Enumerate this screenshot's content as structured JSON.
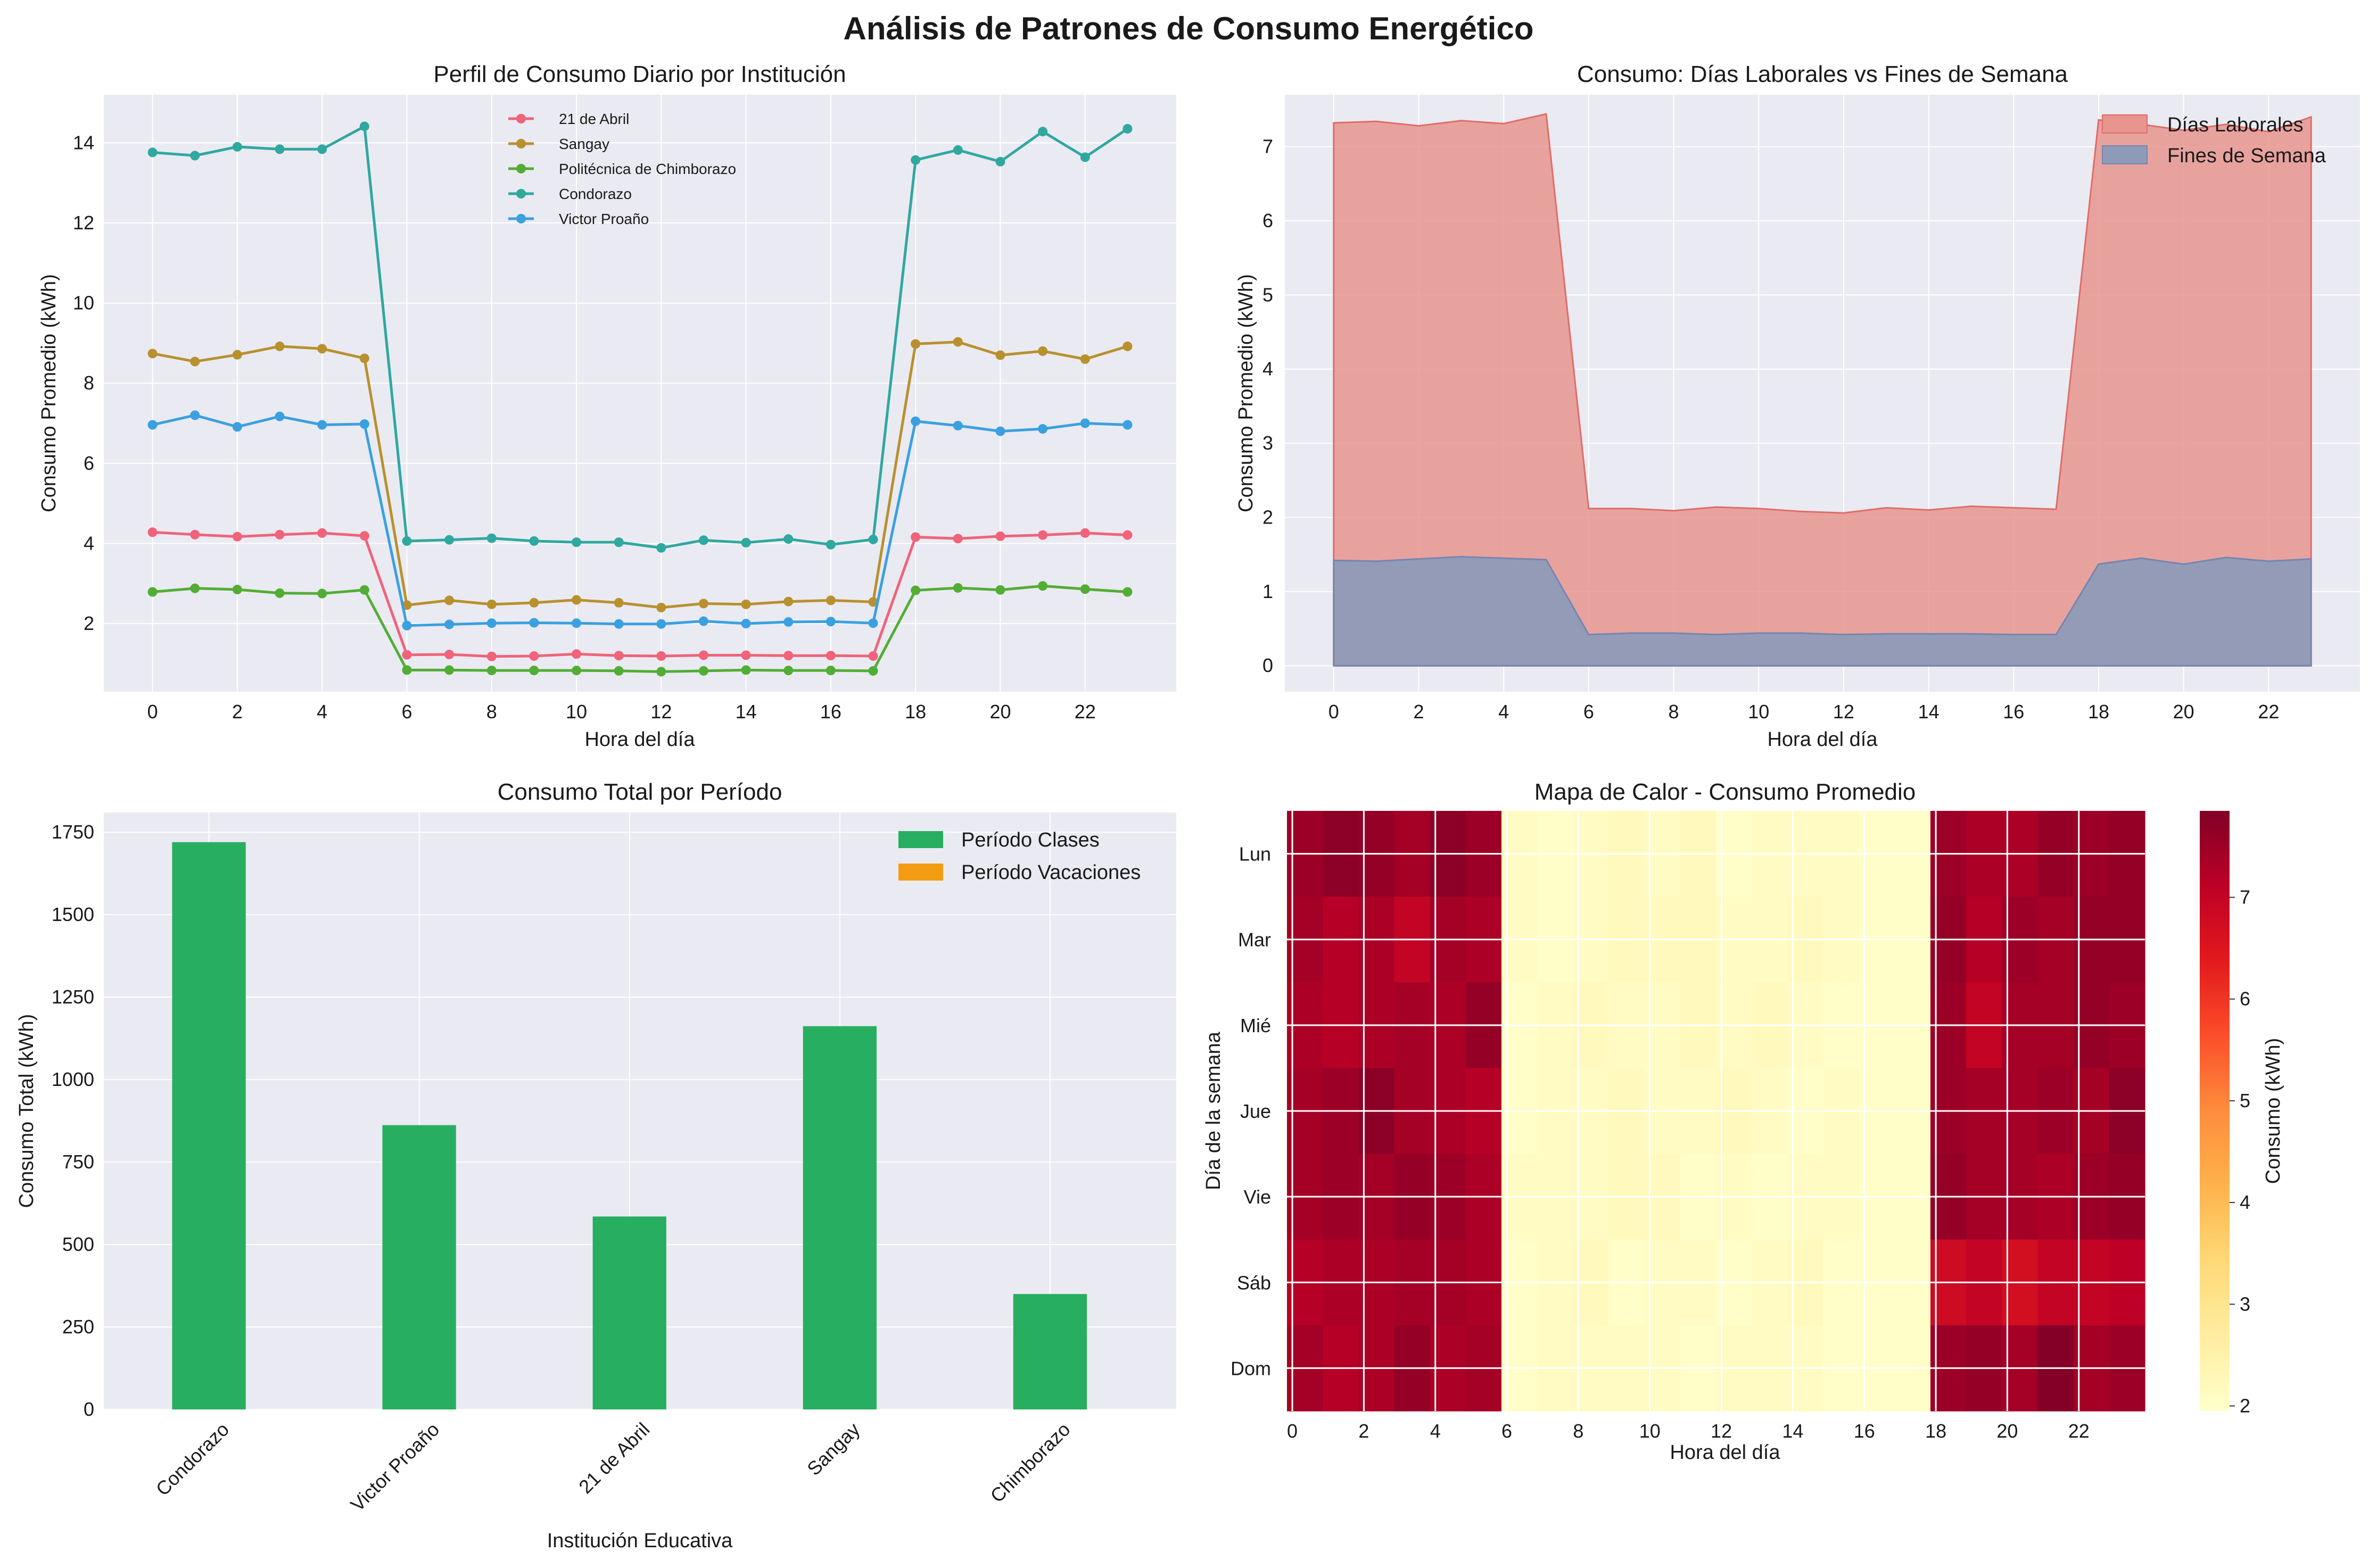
{
  "figure_title": "Análisis de Patrones de Consumo Energético",
  "colors": {
    "panel_bg": "#eaeaf2",
    "grid": "#ffffff",
    "clases": "#27ae60",
    "vacaciones": "#f39c12",
    "laborales": "#e8958f",
    "laborales_edge": "#e06c69",
    "fines": "#8e9bb8",
    "fines_edge": "#7586b0"
  },
  "chart_data": [
    {
      "type": "line",
      "title": "Perfil de Consumo Diario por Institución",
      "xlabel": "Hora del día",
      "ylabel": "Consumo Promedio (kWh)",
      "x": [
        0,
        1,
        2,
        3,
        4,
        5,
        6,
        7,
        8,
        9,
        10,
        11,
        12,
        13,
        14,
        15,
        16,
        17,
        18,
        19,
        20,
        21,
        22,
        23
      ],
      "xticks": [
        "0",
        "2",
        "4",
        "6",
        "8",
        "10",
        "12",
        "14",
        "16",
        "18",
        "20",
        "22"
      ],
      "yticks": [
        "2",
        "4",
        "6",
        "8",
        "10",
        "12",
        "14"
      ],
      "ylim": [
        0.3,
        15.2
      ],
      "legend": "top-center",
      "series": [
        {
          "name": "21 de Abril",
          "color": "#f0637a",
          "values": [
            4.28,
            4.22,
            4.17,
            4.22,
            4.26,
            4.19,
            1.22,
            1.23,
            1.18,
            1.19,
            1.24,
            1.2,
            1.19,
            1.21,
            1.21,
            1.2,
            1.2,
            1.19,
            4.16,
            4.12,
            4.18,
            4.21,
            4.26,
            4.21
          ]
        },
        {
          "name": "Sangay",
          "color": "#b8902e",
          "values": [
            8.74,
            8.54,
            8.71,
            8.92,
            8.86,
            8.62,
            2.46,
            2.58,
            2.48,
            2.52,
            2.59,
            2.52,
            2.4,
            2.5,
            2.48,
            2.55,
            2.58,
            2.54,
            8.98,
            9.03,
            8.7,
            8.8,
            8.6,
            8.92
          ]
        },
        {
          "name": "Politécnica de Chimborazo",
          "color": "#52ad35",
          "values": [
            2.79,
            2.88,
            2.85,
            2.76,
            2.75,
            2.84,
            0.84,
            0.84,
            0.83,
            0.83,
            0.83,
            0.82,
            0.8,
            0.82,
            0.84,
            0.83,
            0.83,
            0.82,
            2.83,
            2.89,
            2.84,
            2.94,
            2.86,
            2.79
          ]
        },
        {
          "name": "Condorazo",
          "color": "#2fa8a0",
          "values": [
            13.76,
            13.68,
            13.9,
            13.84,
            13.84,
            14.41,
            4.06,
            4.09,
            4.13,
            4.06,
            4.03,
            4.03,
            3.89,
            4.08,
            4.02,
            4.11,
            3.97,
            4.1,
            13.57,
            13.82,
            13.53,
            14.28,
            13.64,
            14.35
          ]
        },
        {
          "name": "Victor Proaño",
          "color": "#3aa0e0",
          "values": [
            6.96,
            7.2,
            6.91,
            7.17,
            6.96,
            6.98,
            1.95,
            1.98,
            2.01,
            2.02,
            2.01,
            1.99,
            1.99,
            2.06,
            2.0,
            2.04,
            2.05,
            2.01,
            7.05,
            6.94,
            6.8,
            6.86,
            7.0,
            6.96
          ]
        }
      ]
    },
    {
      "type": "area",
      "title": "Consumo: Días Laborales vs Fines de Semana",
      "xlabel": "Hora del día",
      "ylabel": "Consumo Promedio (kWh)",
      "x": [
        0,
        1,
        2,
        3,
        4,
        5,
        6,
        7,
        8,
        9,
        10,
        11,
        12,
        13,
        14,
        15,
        16,
        17,
        18,
        19,
        20,
        21,
        22,
        23
      ],
      "xticks": [
        "0",
        "2",
        "4",
        "6",
        "8",
        "10",
        "12",
        "14",
        "16",
        "18",
        "20",
        "22"
      ],
      "yticks": [
        "0",
        "1",
        "2",
        "3",
        "4",
        "5",
        "6",
        "7"
      ],
      "ylim": [
        -0.35,
        7.7
      ],
      "legend": "top-right",
      "series": [
        {
          "name": "Días Laborales",
          "values": [
            7.32,
            7.34,
            7.28,
            7.35,
            7.31,
            7.44,
            2.12,
            2.12,
            2.09,
            2.14,
            2.12,
            2.08,
            2.06,
            2.13,
            2.1,
            2.15,
            2.13,
            2.11,
            7.36,
            7.3,
            7.22,
            7.3,
            7.2,
            7.4
          ]
        },
        {
          "name": "Fines de Semana",
          "values": [
            1.42,
            1.41,
            1.44,
            1.47,
            1.45,
            1.43,
            0.42,
            0.44,
            0.44,
            0.42,
            0.44,
            0.44,
            0.42,
            0.43,
            0.43,
            0.43,
            0.42,
            0.42,
            1.37,
            1.45,
            1.37,
            1.46,
            1.41,
            1.44
          ]
        }
      ]
    },
    {
      "type": "bar",
      "title": "Consumo Total por Período",
      "xlabel": "Institución Educativa",
      "ylabel": "Consumo Total (kWh)",
      "categories": [
        "Condorazo",
        "Victor Proaño",
        "21 de Abril",
        "Sangay",
        "Chimborazo"
      ],
      "yticks": [
        "0",
        "250",
        "500",
        "750",
        "1000",
        "1250",
        "1500",
        "1750"
      ],
      "ylim": [
        0,
        1810
      ],
      "legend": "top-right",
      "series": [
        {
          "name": "Período Clases",
          "values": [
            1720,
            862,
            585,
            1162,
            350
          ]
        },
        {
          "name": "Período Vacaciones",
          "values": [
            0,
            0,
            0,
            0,
            0
          ]
        }
      ]
    },
    {
      "type": "heatmap",
      "title": "Mapa de Calor - Consumo Promedio",
      "xlabel": "Hora del día",
      "ylabel": "Día de la semana",
      "xticks": [
        "0",
        "2",
        "4",
        "6",
        "8",
        "10",
        "12",
        "14",
        "16",
        "18",
        "20",
        "22"
      ],
      "rows": [
        "Lun",
        "Mar",
        "Mié",
        "Jue",
        "Vie",
        "Sáb",
        "Dom"
      ],
      "colorbar_label": "Consumo (kWh)",
      "colorbar_ticks": [
        "2",
        "3",
        "4",
        "5",
        "6",
        "7"
      ],
      "vmin": 1.95,
      "vmax": 7.85,
      "values": [
        [
          7.5,
          7.7,
          7.6,
          7.4,
          7.7,
          7.5,
          2.1,
          2.0,
          2.1,
          2.2,
          2.1,
          2.2,
          2.0,
          2.1,
          2.1,
          2.1,
          2.0,
          2.0,
          7.5,
          7.3,
          7.3,
          7.6,
          7.5,
          7.6
        ],
        [
          7.4,
          7.2,
          7.3,
          7.0,
          7.4,
          7.3,
          2.1,
          2.0,
          2.1,
          2.2,
          2.2,
          2.2,
          2.1,
          2.1,
          2.2,
          2.1,
          2.0,
          2.0,
          7.6,
          7.2,
          7.5,
          7.4,
          7.6,
          7.6
        ],
        [
          7.3,
          7.2,
          7.3,
          7.4,
          7.3,
          7.6,
          2.0,
          2.1,
          2.2,
          2.1,
          2.1,
          2.2,
          2.1,
          2.2,
          2.1,
          2.0,
          2.0,
          2.0,
          7.5,
          7.0,
          7.4,
          7.4,
          7.6,
          7.5
        ],
        [
          7.4,
          7.5,
          7.7,
          7.4,
          7.3,
          7.2,
          2.0,
          2.1,
          2.1,
          2.2,
          2.1,
          2.1,
          2.2,
          2.1,
          2.0,
          2.1,
          2.0,
          2.0,
          7.5,
          7.4,
          7.4,
          7.5,
          7.4,
          7.7
        ],
        [
          7.4,
          7.5,
          7.4,
          7.6,
          7.5,
          7.3,
          2.1,
          2.1,
          2.1,
          2.2,
          2.2,
          2.0,
          2.1,
          2.0,
          2.1,
          2.1,
          2.0,
          2.0,
          7.6,
          7.4,
          7.4,
          7.3,
          7.5,
          7.6
        ],
        [
          7.2,
          7.3,
          7.3,
          7.4,
          7.4,
          7.3,
          2.0,
          2.1,
          2.2,
          2.0,
          2.1,
          2.1,
          2.0,
          2.1,
          2.2,
          2.0,
          2.0,
          2.0,
          6.8,
          7.0,
          6.7,
          7.0,
          7.0,
          7.1
        ],
        [
          7.4,
          7.2,
          7.3,
          7.6,
          7.3,
          7.4,
          2.0,
          2.1,
          2.1,
          2.1,
          2.1,
          2.0,
          2.1,
          2.1,
          2.1,
          2.0,
          2.0,
          2.0,
          7.5,
          7.6,
          7.4,
          7.8,
          7.4,
          7.5
        ]
      ]
    }
  ]
}
